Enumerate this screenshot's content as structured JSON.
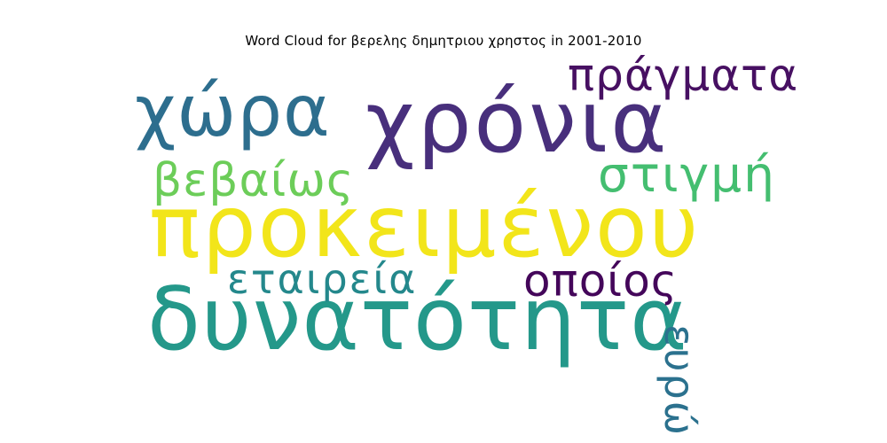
{
  "title": "Word Cloud for βερελης δημητριου χρηστος in 2001-2010",
  "words": [
    {
      "text": "προκειμένου",
      "color": "#f2e51a"
    },
    {
      "text": "δυνατότητα",
      "color": "#24988a"
    },
    {
      "text": "χρόνια",
      "color": "#482f7c"
    },
    {
      "text": "χώρα",
      "color": "#2d6e8e"
    },
    {
      "text": "πράγματα",
      "color": "#471062"
    },
    {
      "text": "στιγμή",
      "color": "#44be70"
    },
    {
      "text": "βεβαίως",
      "color": "#6ccd59"
    },
    {
      "text": "εταιρεία",
      "color": "#24888c"
    },
    {
      "text": "οποίος",
      "color": "#44065a"
    },
    {
      "text": "ευρώ",
      "color": "#2b718e"
    }
  ]
}
